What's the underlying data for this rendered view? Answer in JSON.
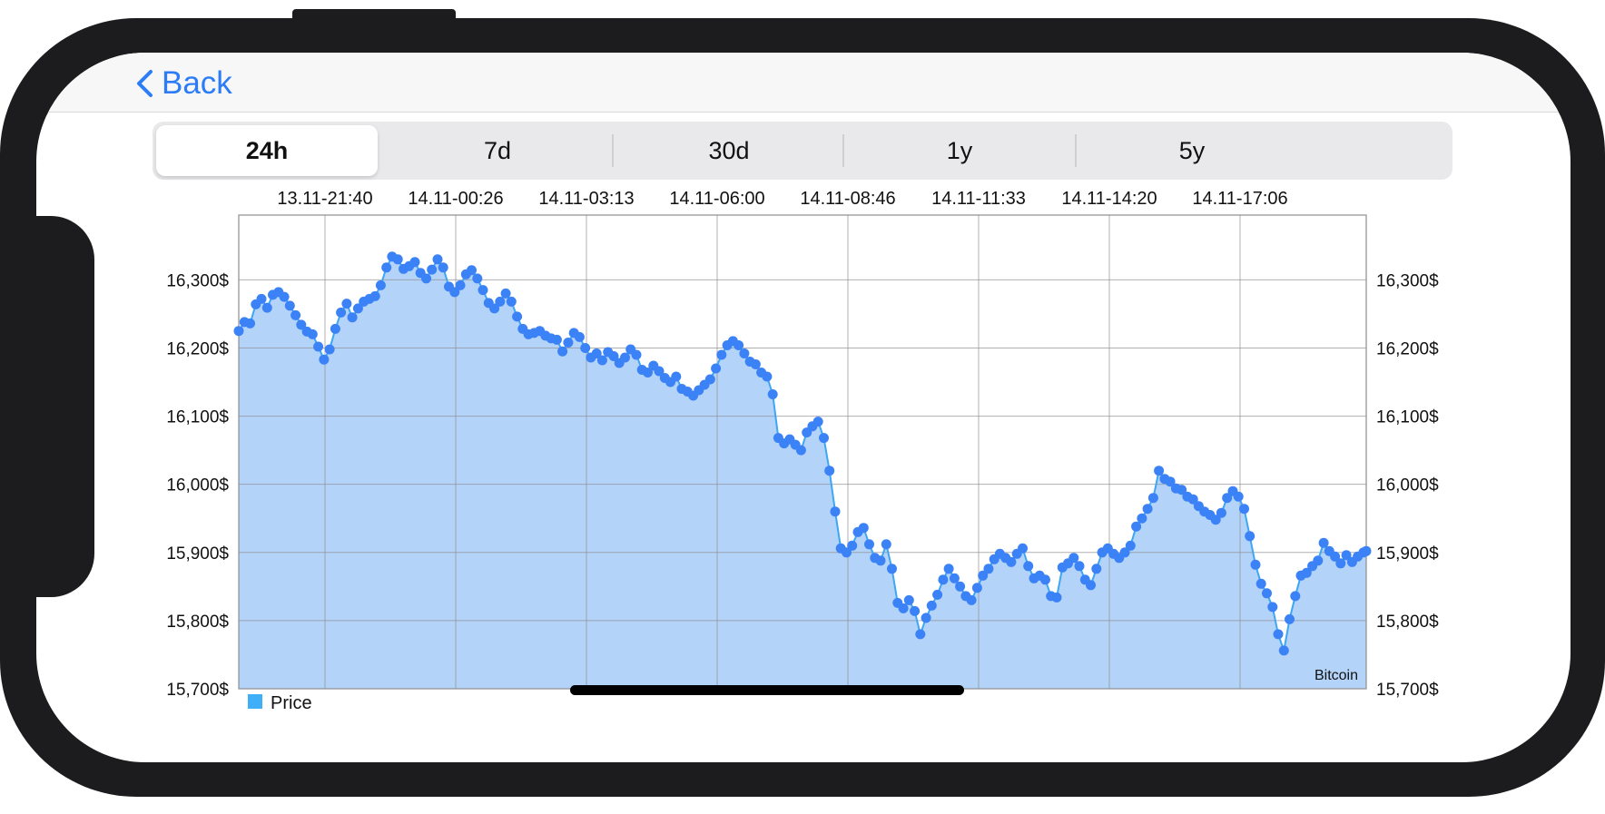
{
  "nav": {
    "back_label": "Back"
  },
  "segments": [
    "24h",
    "7d",
    "30d",
    "1y",
    "5y"
  ],
  "selected_segment": "24h",
  "colors": {
    "accent": "#2b7cf6",
    "line": "#3ba7f5",
    "marker": "#3b82f6",
    "fill": "#b3d3f9",
    "legend": "#3fb0f8",
    "frame": "#1c1c1e"
  },
  "chart_data": {
    "type": "area",
    "title": "",
    "xlabel": "",
    "ylabel": "",
    "x_tick_labels": [
      "13.11-21:40",
      "14.11-00:26",
      "14.11-03:13",
      "14.11-06:00",
      "14.11-08:46",
      "14.11-11:33",
      "14.11-14:20",
      "14.11-17:06"
    ],
    "y_tick_labels": [
      "15,700$",
      "15,800$",
      "15,900$",
      "16,000$",
      "16,100$",
      "16,200$",
      "16,300$"
    ],
    "ylim": [
      15700,
      16395
    ],
    "x_position": "top",
    "y_axis_both_sides": true,
    "grid": true,
    "legend": [
      "Price"
    ],
    "legend_position": "bottom-left",
    "annotation": "Bitcoin",
    "series": [
      {
        "name": "Price",
        "points": [
          [
            0,
            16225
          ],
          [
            2,
            16238
          ],
          [
            4,
            16236
          ],
          [
            6,
            16264
          ],
          [
            8,
            16272
          ],
          [
            10,
            16259
          ],
          [
            12,
            16278
          ],
          [
            14,
            16282
          ],
          [
            16,
            16275
          ],
          [
            18,
            16262
          ],
          [
            20,
            16248
          ],
          [
            22,
            16234
          ],
          [
            24,
            16224
          ],
          [
            26,
            16220
          ],
          [
            28,
            16202
          ],
          [
            30,
            16183
          ],
          [
            32,
            16198
          ],
          [
            34,
            16228
          ],
          [
            36,
            16252
          ],
          [
            38,
            16265
          ],
          [
            40,
            16245
          ],
          [
            42,
            16258
          ],
          [
            44,
            16268
          ],
          [
            46,
            16272
          ],
          [
            48,
            16276
          ],
          [
            50,
            16292
          ],
          [
            52,
            16318
          ],
          [
            54,
            16334
          ],
          [
            56,
            16330
          ],
          [
            58,
            16316
          ],
          [
            60,
            16320
          ],
          [
            62,
            16326
          ],
          [
            64,
            16310
          ],
          [
            66,
            16302
          ],
          [
            68,
            16315
          ],
          [
            70,
            16330
          ],
          [
            72,
            16318
          ],
          [
            74,
            16290
          ],
          [
            76,
            16282
          ],
          [
            78,
            16292
          ],
          [
            80,
            16308
          ],
          [
            82,
            16314
          ],
          [
            84,
            16302
          ],
          [
            86,
            16285
          ],
          [
            88,
            16266
          ],
          [
            90,
            16258
          ],
          [
            92,
            16268
          ],
          [
            94,
            16280
          ],
          [
            96,
            16268
          ],
          [
            98,
            16246
          ],
          [
            100,
            16228
          ],
          [
            102,
            16220
          ],
          [
            104,
            16222
          ],
          [
            106,
            16225
          ],
          [
            108,
            16218
          ],
          [
            110,
            16214
          ],
          [
            112,
            16212
          ],
          [
            114,
            16195
          ],
          [
            116,
            16208
          ],
          [
            118,
            16222
          ],
          [
            120,
            16216
          ],
          [
            122,
            16200
          ],
          [
            124,
            16186
          ],
          [
            126,
            16192
          ],
          [
            128,
            16182
          ],
          [
            130,
            16194
          ],
          [
            132,
            16188
          ],
          [
            134,
            16178
          ],
          [
            136,
            16186
          ],
          [
            138,
            16198
          ],
          [
            140,
            16190
          ],
          [
            142,
            16168
          ],
          [
            144,
            16164
          ],
          [
            146,
            16174
          ],
          [
            148,
            16166
          ],
          [
            150,
            16156
          ],
          [
            152,
            16150
          ],
          [
            154,
            16158
          ],
          [
            156,
            16140
          ],
          [
            158,
            16136
          ],
          [
            160,
            16130
          ],
          [
            162,
            16138
          ],
          [
            164,
            16146
          ],
          [
            166,
            16154
          ],
          [
            168,
            16170
          ],
          [
            170,
            16190
          ],
          [
            172,
            16204
          ],
          [
            174,
            16210
          ],
          [
            176,
            16204
          ],
          [
            178,
            16192
          ],
          [
            180,
            16180
          ],
          [
            182,
            16176
          ],
          [
            184,
            16164
          ],
          [
            186,
            16158
          ],
          [
            188,
            16132
          ],
          [
            190,
            16068
          ],
          [
            192,
            16060
          ],
          [
            194,
            16066
          ],
          [
            196,
            16058
          ],
          [
            198,
            16050
          ],
          [
            200,
            16076
          ],
          [
            202,
            16085
          ],
          [
            204,
            16092
          ],
          [
            206,
            16068
          ],
          [
            208,
            16020
          ],
          [
            210,
            15960
          ],
          [
            212,
            15906
          ],
          [
            214,
            15900
          ],
          [
            216,
            15910
          ],
          [
            218,
            15930
          ],
          [
            220,
            15936
          ],
          [
            222,
            15912
          ],
          [
            224,
            15892
          ],
          [
            226,
            15888
          ],
          [
            228,
            15912
          ],
          [
            230,
            15876
          ],
          [
            232,
            15826
          ],
          [
            234,
            15818
          ],
          [
            236,
            15830
          ],
          [
            238,
            15814
          ],
          [
            240,
            15780
          ],
          [
            242,
            15804
          ],
          [
            244,
            15822
          ],
          [
            246,
            15838
          ],
          [
            248,
            15860
          ],
          [
            250,
            15876
          ],
          [
            252,
            15862
          ],
          [
            254,
            15850
          ],
          [
            256,
            15836
          ],
          [
            258,
            15830
          ],
          [
            260,
            15848
          ],
          [
            262,
            15866
          ],
          [
            264,
            15876
          ],
          [
            266,
            15890
          ],
          [
            268,
            15898
          ],
          [
            270,
            15892
          ],
          [
            272,
            15886
          ],
          [
            274,
            15898
          ],
          [
            276,
            15906
          ],
          [
            278,
            15880
          ],
          [
            280,
            15862
          ],
          [
            282,
            15866
          ],
          [
            284,
            15860
          ],
          [
            286,
            15836
          ],
          [
            288,
            15834
          ],
          [
            290,
            15878
          ],
          [
            292,
            15884
          ],
          [
            294,
            15892
          ],
          [
            296,
            15880
          ],
          [
            298,
            15860
          ],
          [
            300,
            15852
          ],
          [
            302,
            15876
          ],
          [
            304,
            15900
          ],
          [
            306,
            15906
          ],
          [
            308,
            15898
          ],
          [
            310,
            15892
          ],
          [
            312,
            15900
          ],
          [
            314,
            15910
          ],
          [
            316,
            15938
          ],
          [
            318,
            15950
          ],
          [
            320,
            15964
          ],
          [
            322,
            15980
          ],
          [
            324,
            16020
          ],
          [
            326,
            16008
          ],
          [
            328,
            16004
          ],
          [
            330,
            15994
          ],
          [
            332,
            15992
          ],
          [
            334,
            15982
          ],
          [
            336,
            15978
          ],
          [
            338,
            15968
          ],
          [
            340,
            15960
          ],
          [
            342,
            15955
          ],
          [
            344,
            15948
          ],
          [
            346,
            15958
          ],
          [
            348,
            15980
          ],
          [
            350,
            15990
          ],
          [
            352,
            15982
          ],
          [
            354,
            15964
          ],
          [
            356,
            15924
          ],
          [
            358,
            15882
          ],
          [
            360,
            15854
          ],
          [
            362,
            15840
          ],
          [
            364,
            15820
          ],
          [
            366,
            15780
          ],
          [
            368,
            15756
          ],
          [
            370,
            15802
          ],
          [
            372,
            15836
          ],
          [
            374,
            15866
          ],
          [
            376,
            15870
          ],
          [
            378,
            15880
          ],
          [
            380,
            15888
          ],
          [
            382,
            15914
          ],
          [
            384,
            15902
          ],
          [
            386,
            15894
          ],
          [
            388,
            15884
          ],
          [
            390,
            15896
          ],
          [
            392,
            15886
          ],
          [
            394,
            15894
          ],
          [
            396,
            15900
          ],
          [
            397,
            15902
          ]
        ]
      }
    ]
  }
}
